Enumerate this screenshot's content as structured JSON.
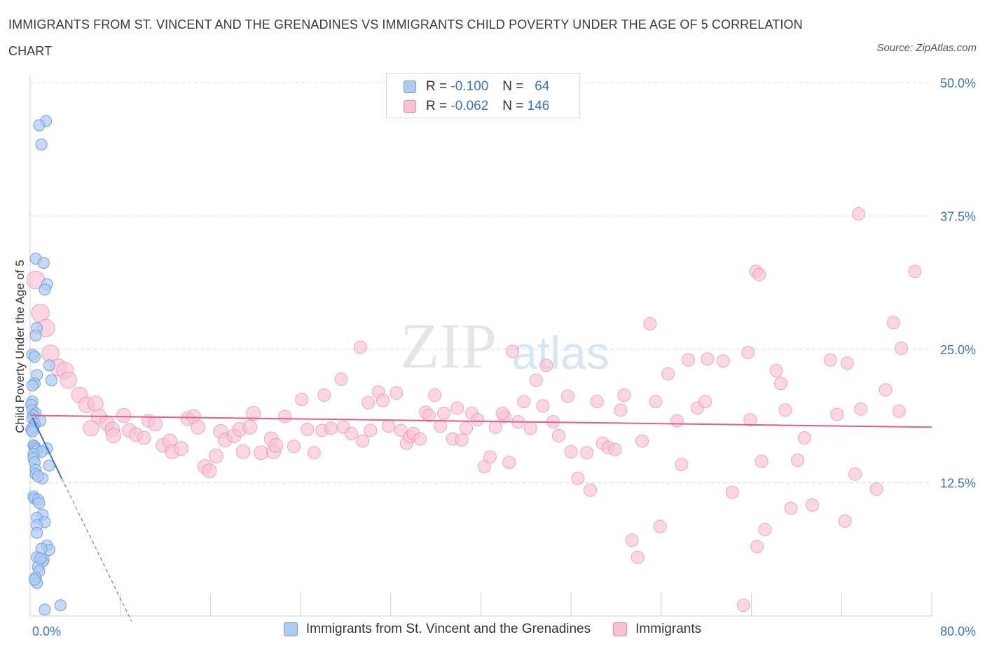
{
  "title": "IMMIGRANTS FROM ST. VINCENT AND THE GRENADINES VS IMMIGRANTS CHILD POVERTY UNDER THE AGE OF 5 CORRELATION CHART",
  "source": "Source: ZipAtlas.com",
  "watermark": {
    "zip": "ZIP",
    "atlas": "atlas"
  },
  "legend": {
    "r_label": "R =",
    "n_label": "N =",
    "series": [
      {
        "r": "-0.100",
        "n": "64",
        "color": "#aecbf2",
        "border": "#6e9fe0"
      },
      {
        "r": "-0.062",
        "n": "146",
        "color": "#f7c1d2",
        "border": "#e88aa8"
      }
    ]
  },
  "chart_data": {
    "type": "scatter",
    "xlabel": "",
    "ylabel": "Child Poverty Under the Age of 5",
    "xlim": [
      0,
      80
    ],
    "ylim": [
      0,
      50
    ],
    "x_tick_labels": [
      "0.0%",
      "80.0%"
    ],
    "y_ticks": [
      12.5,
      25,
      37.5,
      50
    ],
    "y_tick_labels": [
      "12.5%",
      "25.0%",
      "37.5%",
      "50.0%"
    ],
    "grid": true,
    "legend_position": "bottom",
    "series": [
      {
        "name": "Immigrants from St. Vincent and the Grenadines",
        "color": "#aecbf2",
        "stroke": "#6e9fe0",
        "trend": {
          "x0": 0.2,
          "y0": 18.6,
          "x1": 2.8,
          "y1": 12.9,
          "dash_x1": 9.0,
          "dash_y1": -0.5,
          "color": "#3b74c4"
        },
        "points": [
          [
            1.4,
            46.4
          ],
          [
            0.8,
            46.0
          ],
          [
            1.0,
            44.2
          ],
          [
            0.5,
            33.5
          ],
          [
            1.2,
            33.1
          ],
          [
            1.5,
            31.1
          ],
          [
            1.3,
            30.6
          ],
          [
            0.6,
            27.0
          ],
          [
            0.5,
            26.3
          ],
          [
            0.2,
            24.5
          ],
          [
            0.4,
            24.3
          ],
          [
            1.7,
            23.5
          ],
          [
            0.6,
            22.6
          ],
          [
            1.9,
            22.1
          ],
          [
            0.4,
            21.8
          ],
          [
            0.2,
            21.6
          ],
          [
            0.2,
            20.1
          ],
          [
            0.1,
            19.8
          ],
          [
            0.2,
            19.3
          ],
          [
            0.5,
            19.0
          ],
          [
            0.3,
            18.8
          ],
          [
            0.2,
            18.5
          ],
          [
            0.9,
            18.3
          ],
          [
            0.4,
            18.0
          ],
          [
            0.3,
            17.7
          ],
          [
            0.1,
            17.5
          ],
          [
            0.2,
            17.3
          ],
          [
            0.3,
            16.0
          ],
          [
            0.4,
            15.9
          ],
          [
            0.5,
            15.7
          ],
          [
            1.5,
            15.7
          ],
          [
            0.6,
            15.5
          ],
          [
            1.0,
            15.4
          ],
          [
            0.3,
            15.2
          ],
          [
            0.3,
            14.8
          ],
          [
            0.4,
            14.4
          ],
          [
            1.7,
            14.1
          ],
          [
            0.5,
            13.7
          ],
          [
            0.5,
            13.3
          ],
          [
            1.1,
            12.9
          ],
          [
            0.7,
            13.1
          ],
          [
            0.3,
            11.2
          ],
          [
            0.4,
            11.0
          ],
          [
            0.7,
            10.9
          ],
          [
            0.8,
            10.6
          ],
          [
            1.1,
            9.5
          ],
          [
            0.6,
            9.2
          ],
          [
            1.3,
            8.8
          ],
          [
            0.6,
            8.5
          ],
          [
            0.6,
            7.8
          ],
          [
            1.5,
            6.6
          ],
          [
            1.7,
            6.2
          ],
          [
            1.0,
            6.3
          ],
          [
            0.6,
            5.5
          ],
          [
            1.2,
            5.3
          ],
          [
            1.1,
            5.1
          ],
          [
            0.7,
            4.6
          ],
          [
            0.8,
            4.2
          ],
          [
            0.5,
            3.6
          ],
          [
            0.6,
            3.1
          ],
          [
            2.7,
            1.0
          ],
          [
            1.3,
            0.6
          ],
          [
            0.9,
            5.4
          ],
          [
            0.4,
            3.4
          ]
        ]
      },
      {
        "name": "Immigrants",
        "color": "#f7c1d2",
        "stroke": "#e88aa8",
        "trend": {
          "x0": 0,
          "y0": 18.8,
          "x1": 80,
          "y1": 17.7,
          "color": "#e35d8d"
        },
        "points": [
          [
            0.5,
            31.5
          ],
          [
            0.9,
            28.4
          ],
          [
            1.4,
            27.0
          ],
          [
            1.8,
            24.6
          ],
          [
            2.5,
            23.3
          ],
          [
            3.1,
            23.0
          ],
          [
            3.4,
            22.1
          ],
          [
            4.4,
            20.7
          ],
          [
            5.0,
            19.8
          ],
          [
            5.8,
            19.9
          ],
          [
            6.1,
            18.7
          ],
          [
            6.8,
            18.1
          ],
          [
            5.4,
            17.6
          ],
          [
            7.3,
            17.5
          ],
          [
            7.4,
            16.9
          ],
          [
            8.3,
            18.8
          ],
          [
            8.8,
            17.4
          ],
          [
            9.4,
            17.0
          ],
          [
            10.1,
            16.7
          ],
          [
            10.5,
            18.3
          ],
          [
            11.1,
            18.0
          ],
          [
            11.8,
            16.0
          ],
          [
            12.4,
            16.4
          ],
          [
            12.6,
            15.4
          ],
          [
            13.4,
            15.7
          ],
          [
            14.0,
            18.5
          ],
          [
            14.5,
            18.7
          ],
          [
            14.9,
            17.7
          ],
          [
            15.5,
            14.0
          ],
          [
            15.9,
            13.6
          ],
          [
            16.5,
            15.0
          ],
          [
            16.9,
            17.3
          ],
          [
            17.3,
            16.5
          ],
          [
            18.1,
            16.9
          ],
          [
            18.9,
            15.4
          ],
          [
            18.6,
            17.5
          ],
          [
            19.5,
            17.7
          ],
          [
            19.8,
            19.0
          ],
          [
            20.5,
            15.3
          ],
          [
            21.4,
            16.6
          ],
          [
            21.6,
            15.4
          ],
          [
            21.8,
            16.0
          ],
          [
            22.6,
            18.7
          ],
          [
            23.4,
            15.9
          ],
          [
            24.1,
            20.3
          ],
          [
            24.6,
            17.5
          ],
          [
            25.2,
            15.3
          ],
          [
            25.9,
            17.4
          ],
          [
            26.1,
            20.7
          ],
          [
            26.7,
            17.6
          ],
          [
            27.6,
            22.2
          ],
          [
            27.8,
            17.7
          ],
          [
            28.5,
            17.1
          ],
          [
            29.5,
            16.4
          ],
          [
            29.3,
            25.2
          ],
          [
            30.0,
            20.0
          ],
          [
            30.2,
            17.4
          ],
          [
            30.9,
            21.0
          ],
          [
            31.3,
            20.2
          ],
          [
            31.8,
            17.8
          ],
          [
            32.5,
            20.9
          ],
          [
            32.9,
            17.4
          ],
          [
            33.4,
            16.2
          ],
          [
            33.7,
            16.8
          ],
          [
            34.0,
            17.1
          ],
          [
            34.6,
            16.6
          ],
          [
            35.1,
            19.1
          ],
          [
            35.4,
            18.8
          ],
          [
            35.9,
            20.7
          ],
          [
            36.7,
            19.0
          ],
          [
            36.4,
            17.8
          ],
          [
            37.5,
            16.6
          ],
          [
            37.9,
            19.5
          ],
          [
            38.3,
            16.5
          ],
          [
            38.7,
            17.6
          ],
          [
            39.2,
            19.0
          ],
          [
            39.7,
            18.4
          ],
          [
            40.3,
            14.0
          ],
          [
            40.8,
            14.9
          ],
          [
            41.3,
            17.7
          ],
          [
            42.1,
            18.7
          ],
          [
            41.9,
            19.0
          ],
          [
            42.5,
            14.4
          ],
          [
            42.8,
            24.8
          ],
          [
            43.3,
            18.2
          ],
          [
            43.8,
            20.1
          ],
          [
            44.4,
            17.6
          ],
          [
            44.9,
            22.1
          ],
          [
            45.5,
            19.7
          ],
          [
            45.8,
            23.5
          ],
          [
            46.4,
            18.2
          ],
          [
            46.9,
            16.9
          ],
          [
            47.7,
            20.6
          ],
          [
            48.0,
            15.4
          ],
          [
            48.6,
            12.9
          ],
          [
            49.4,
            15.3
          ],
          [
            49.7,
            11.8
          ],
          [
            50.3,
            20.1
          ],
          [
            50.8,
            16.2
          ],
          [
            51.3,
            15.8
          ],
          [
            51.9,
            15.6
          ],
          [
            52.4,
            19.3
          ],
          [
            52.7,
            20.7
          ],
          [
            53.4,
            7.1
          ],
          [
            53.9,
            5.5
          ],
          [
            54.3,
            16.4
          ],
          [
            55.0,
            27.4
          ],
          [
            55.5,
            20.1
          ],
          [
            55.9,
            8.4
          ],
          [
            56.6,
            22.7
          ],
          [
            57.4,
            18.3
          ],
          [
            57.8,
            14.2
          ],
          [
            58.4,
            24.0
          ],
          [
            59.2,
            19.5
          ],
          [
            59.9,
            20.1
          ],
          [
            60.1,
            24.1
          ],
          [
            61.5,
            23.9
          ],
          [
            62.3,
            11.6
          ],
          [
            63.3,
            1.0
          ],
          [
            63.7,
            24.7
          ],
          [
            64.5,
            6.5
          ],
          [
            64.9,
            14.5
          ],
          [
            65.2,
            8.1
          ],
          [
            66.2,
            23.0
          ],
          [
            66.6,
            21.8
          ],
          [
            67.0,
            19.3
          ],
          [
            67.5,
            10.1
          ],
          [
            68.1,
            14.6
          ],
          [
            68.7,
            16.7
          ],
          [
            69.4,
            10.4
          ],
          [
            71.0,
            24.0
          ],
          [
            71.6,
            18.9
          ],
          [
            72.3,
            8.9
          ],
          [
            72.5,
            23.7
          ],
          [
            73.2,
            13.3
          ],
          [
            73.7,
            19.4
          ],
          [
            75.1,
            11.9
          ],
          [
            75.9,
            21.2
          ],
          [
            76.6,
            27.5
          ],
          [
            77.1,
            19.2
          ],
          [
            77.3,
            25.1
          ],
          [
            73.5,
            37.7
          ],
          [
            78.5,
            32.3
          ],
          [
            64.4,
            32.3
          ],
          [
            64.7,
            32.0
          ],
          [
            63.9,
            18.4
          ]
        ]
      }
    ]
  }
}
